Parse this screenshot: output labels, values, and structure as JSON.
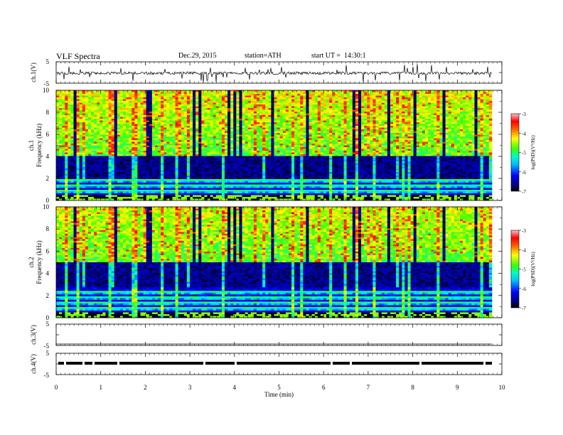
{
  "header": {
    "title": "VLF Spectra",
    "date": "Dec.29, 2015",
    "station": "station=ATH",
    "start": "start UT =  14:30:1"
  },
  "colors": {
    "background": "#ffffff",
    "axes": "#000000",
    "colormap": [
      "#000000",
      "#001060",
      "#0000ff",
      "#00a0ff",
      "#00ffff",
      "#00ff80",
      "#40ff00",
      "#ffff00",
      "#ff8000",
      "#ff0000",
      "#ffb0b0"
    ]
  },
  "chart_data": [
    {
      "type": "line",
      "panel": "ch1-waveform",
      "ylabel": "ch.1(V)",
      "ylim": [
        -5,
        5
      ],
      "yticks": [
        "5",
        "-5"
      ],
      "xlim": [
        0,
        10
      ],
      "series": [
        {
          "values_description_level": 0
        }
      ]
    },
    {
      "type": "heatmap",
      "panel": "ch1-spectrogram",
      "ylabel_channel": "ch.1",
      "ylabel": "Frequency (kHz)",
      "ylim": [
        0,
        10
      ],
      "yticks": [
        "0",
        "2",
        "4",
        "6",
        "8",
        "10"
      ],
      "xlim": [
        0,
        9.8
      ],
      "colorbar": {
        "label": "log(PSD)(V²/Hz)",
        "range": [
          -7,
          -3
        ],
        "ticks": [
          "-3",
          "-4",
          "-5",
          "-6",
          "-7"
        ]
      },
      "quiet_band_kHz": [
        2.0,
        4.0
      ]
    },
    {
      "type": "heatmap",
      "panel": "ch2-spectrogram",
      "ylabel_channel": "ch.2",
      "ylabel": "Frequency (kHz)",
      "ylim": [
        0,
        10
      ],
      "yticks": [
        "0",
        "2",
        "4",
        "6",
        "8",
        "10"
      ],
      "xlim": [
        0,
        9.8
      ],
      "colorbar": {
        "label": "log(PSD)(V²/Hz)",
        "range": [
          -7,
          -3
        ],
        "ticks": [
          "-3",
          "-4",
          "-5",
          "-6",
          "-7"
        ]
      },
      "quiet_band_kHz": [
        2.8,
        5.0
      ]
    },
    {
      "type": "line",
      "panel": "ch3-waveform",
      "ylabel": "ch.3(V)",
      "ylim": [
        -5,
        5
      ],
      "yticks": [
        "5",
        "-5"
      ],
      "xlim": [
        0,
        10
      ]
    },
    {
      "type": "line",
      "panel": "ch4-waveform",
      "ylabel": "ch.4(V)",
      "ylim": [
        -5,
        5
      ],
      "yticks": [
        "5",
        "-5"
      ],
      "xlim": [
        0,
        10
      ],
      "xlabel": "Time (min)",
      "xticks": [
        "0",
        "1",
        "2",
        "3",
        "4",
        "5",
        "6",
        "7",
        "8",
        "9",
        "10"
      ]
    }
  ]
}
